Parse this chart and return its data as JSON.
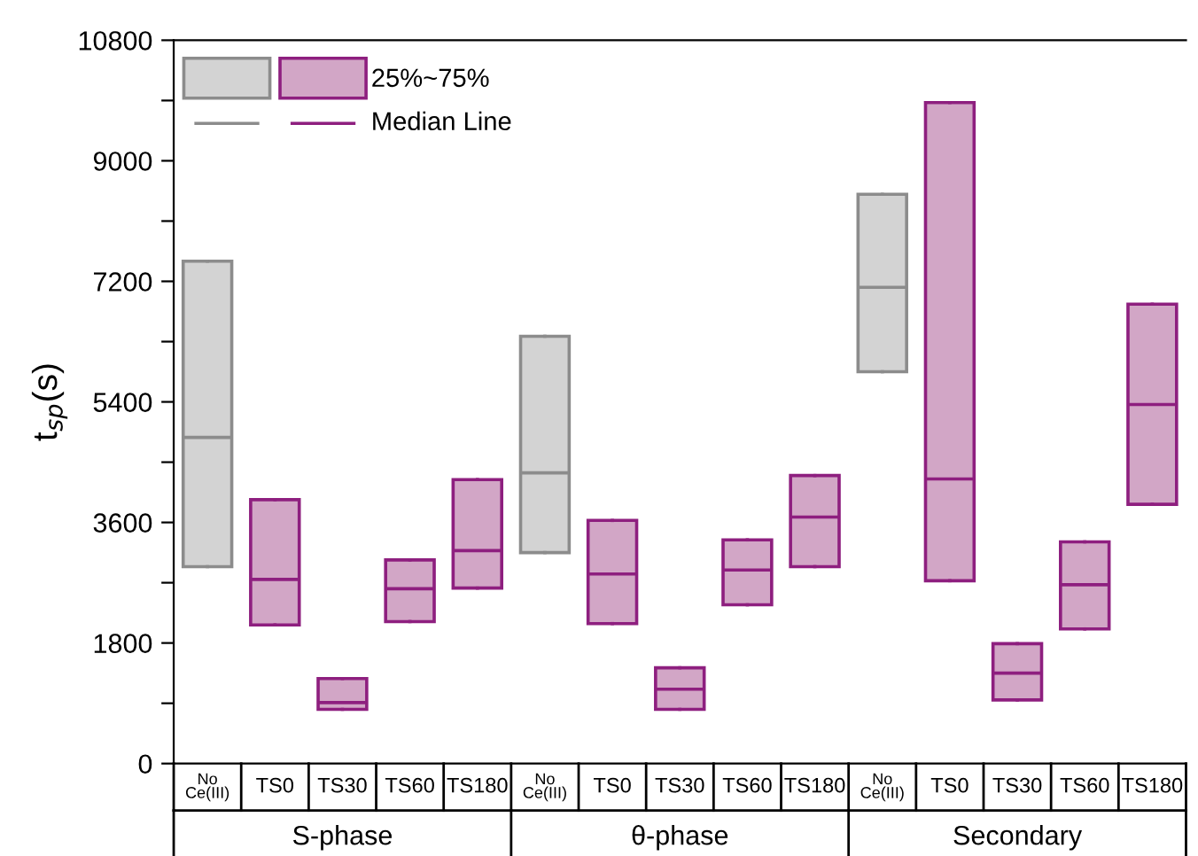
{
  "chart_data": {
    "type": "box",
    "ylabel": "t$_{sp}$(s)",
    "categories": [
      "No\nCe(III)",
      "TS0",
      "TS30",
      "TS60",
      "TS180",
      "No\nCe(III)",
      "TS0",
      "TS30",
      "TS60",
      "TS180",
      "No\nCe(III)",
      "TS0",
      "TS30",
      "TS60",
      "TS180"
    ],
    "series": [
      {
        "color": "#d3d3d3",
        "boxes": [
          {
            "low": 2940,
            "q1": 2940,
            "median": 4870,
            "q3": 7500,
            "high": 7500
          },
          null,
          null,
          null,
          null,
          {
            "low": 3150,
            "q1": 3150,
            "median": 4340,
            "q3": 6380,
            "high": 6380
          },
          null,
          null,
          null,
          null,
          {
            "low": 5850,
            "q1": 5850,
            "median": 7110,
            "q3": 8500,
            "high": 8500
          },
          null,
          null,
          null,
          null
        ]
      },
      {
        "color": "#d2a6c6",
        "boxes": [
          null,
          {
            "low": 2070,
            "q1": 2070,
            "median": 2750,
            "q3": 3940,
            "high": 3940
          },
          {
            "low": 810,
            "q1": 810,
            "median": 910,
            "q3": 1270,
            "high": 1270
          },
          {
            "low": 2120,
            "q1": 2120,
            "median": 2610,
            "q3": 3040,
            "high": 3040
          },
          {
            "low": 2620,
            "q1": 2620,
            "median": 3180,
            "q3": 4240,
            "high": 4240
          },
          null,
          {
            "low": 2090,
            "q1": 2090,
            "median": 2830,
            "q3": 3630,
            "high": 3630
          },
          {
            "low": 810,
            "q1": 810,
            "median": 1110,
            "q3": 1430,
            "high": 1430
          },
          {
            "low": 2370,
            "q1": 2370,
            "median": 2890,
            "q3": 3340,
            "high": 3340
          },
          {
            "low": 2940,
            "q1": 2940,
            "median": 3680,
            "q3": 4300,
            "high": 4300
          },
          null,
          {
            "low": 2730,
            "q1": 2730,
            "median": 4250,
            "q3": 9870,
            "high": 9870
          },
          {
            "low": 950,
            "q1": 950,
            "median": 1350,
            "q3": 1790,
            "high": 1790
          },
          {
            "low": 2010,
            "q1": 2010,
            "median": 2670,
            "q3": 3310,
            "high": 3310
          },
          {
            "low": 3870,
            "q1": 3870,
            "median": 5360,
            "q3": 6860,
            "high": 6860
          }
        ]
      }
    ],
    "ylim": [
      0,
      10800
    ],
    "yticks": [
      0,
      {
        "value": 900,
        "label": null
      },
      1800,
      {
        "value": 2700,
        "label": null
      },
      3600,
      {
        "value": 4500,
        "label": null
      },
      5400,
      {
        "value": 6300,
        "label": null
      },
      7200,
      {
        "value": 8100,
        "label": null
      },
      9000,
      {
        "value": 9900,
        "label": null
      },
      10800
    ],
    "annotations": [
      "25%~75%",
      "Median Line",
      "S-phase",
      "θ-phase",
      "Secondary"
    ],
    "grid": false
  }
}
